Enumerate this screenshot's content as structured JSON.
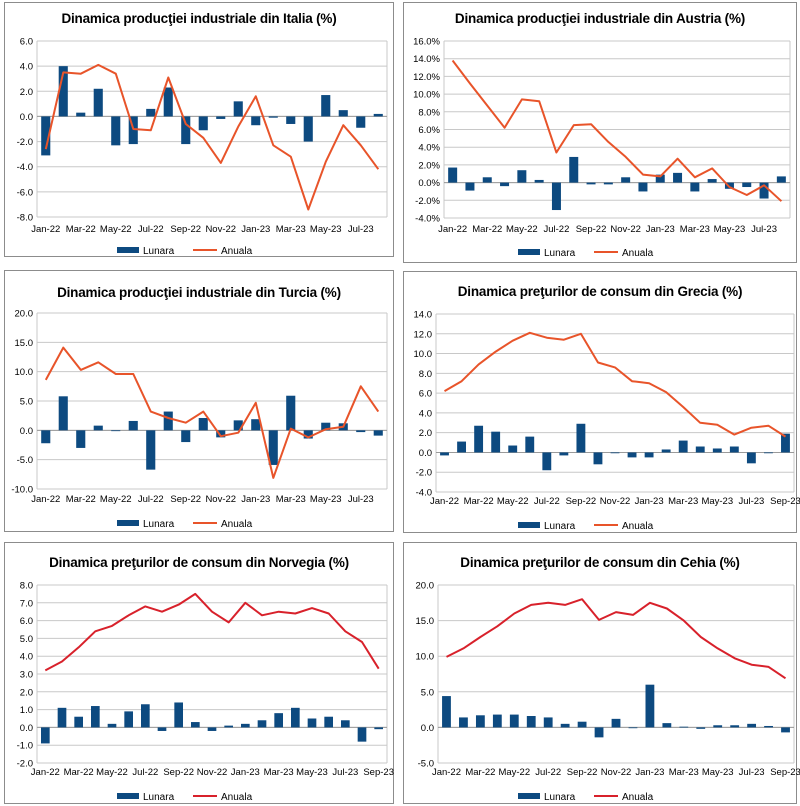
{
  "colors": {
    "bar": "#0d4a80",
    "line_orange": "#e8542a",
    "line_red": "#d8212b",
    "grid": "#c8c8c8"
  },
  "legend": {
    "bar": "Lunara",
    "line": "Anuala"
  },
  "chart_data": [
    {
      "type": "bar+line",
      "title": "Dinamica producţiei industriale din Italia (%)",
      "ylim": [
        -8,
        6
      ],
      "yticks": [
        "6.0",
        "4.0",
        "2.0",
        "0.0",
        "-2.0",
        "-4.0",
        "-6.0",
        "-8.0"
      ],
      "ytick_values": [
        6,
        4,
        2,
        0,
        -2,
        -4,
        -6,
        -8
      ],
      "xtick_labels": [
        "Jan-22",
        "Mar-22",
        "May-22",
        "Jul-22",
        "Sep-22",
        "Nov-22",
        "Jan-23",
        "Mar-23",
        "May-23",
        "Jul-23"
      ],
      "n": 20,
      "line_color": "orange",
      "series": [
        {
          "name": "Lunara",
          "kind": "bar",
          "values": [
            -3.1,
            4.0,
            0.3,
            2.2,
            -2.3,
            -2.2,
            0.6,
            2.3,
            -2.2,
            -1.1,
            -0.2,
            1.2,
            -0.7,
            -0.1,
            -0.6,
            -2.0,
            1.7,
            0.5,
            -0.9,
            0.2
          ]
        },
        {
          "name": "Anuala",
          "kind": "line",
          "values": [
            -2.6,
            3.5,
            3.4,
            4.1,
            3.4,
            -1.0,
            -1.1,
            3.1,
            -0.6,
            -1.7,
            -3.7,
            -0.8,
            1.6,
            -2.3,
            -3.2,
            -7.4,
            -3.6,
            -0.7,
            -2.3,
            -4.2
          ]
        }
      ]
    },
    {
      "type": "bar+line",
      "title": "Dinamica producţiei industriale din Austria (%)",
      "ylim": [
        -4,
        16
      ],
      "yticks": [
        "16.0%",
        "14.0%",
        "12.0%",
        "10.0%",
        "8.0%",
        "6.0%",
        "4.0%",
        "2.0%",
        "0.0%",
        "-2.0%",
        "-4.0%"
      ],
      "ytick_values": [
        16,
        14,
        12,
        10,
        8,
        6,
        4,
        2,
        0,
        -2,
        -4
      ],
      "xtick_labels": [
        "Jan-22",
        "Mar-22",
        "May-22",
        "Jul-22",
        "Sep-22",
        "Nov-22",
        "Jan-23",
        "Mar-23",
        "May-23",
        "Jul-23"
      ],
      "n": 20,
      "line_color": "orange",
      "series": [
        {
          "name": "Lunara",
          "kind": "bar",
          "values": [
            1.7,
            -0.9,
            0.6,
            -0.4,
            1.4,
            0.3,
            -3.1,
            2.9,
            -0.2,
            -0.2,
            0.6,
            -1.0,
            0.9,
            1.1,
            -1.0,
            0.4,
            -0.7,
            -0.5,
            -1.8,
            0.7
          ]
        },
        {
          "name": "Anuala",
          "kind": "line",
          "values": [
            13.8,
            11.2,
            8.7,
            6.2,
            9.4,
            9.2,
            3.4,
            6.5,
            6.6,
            4.6,
            2.9,
            0.9,
            0.7,
            2.7,
            0.6,
            1.6,
            -0.5,
            -1.4,
            -0.3,
            -2.1
          ]
        }
      ]
    },
    {
      "type": "bar+line",
      "title": "Dinamica producţiei industriale din Turcia (%)",
      "ylim": [
        -10,
        20
      ],
      "yticks": [
        "20.0",
        "15.0",
        "10.0",
        "5.0",
        "0.0",
        "-5.0",
        "-10.0"
      ],
      "ytick_values": [
        20,
        15,
        10,
        5,
        0,
        -5,
        -10
      ],
      "xtick_labels": [
        "Jan-22",
        "Mar-22",
        "May-22",
        "Jul-22",
        "Sep-22",
        "Nov-22",
        "Jan-23",
        "Mar-23",
        "May-23",
        "Jul-23"
      ],
      "n": 20,
      "line_color": "orange",
      "series": [
        {
          "name": "Lunara",
          "kind": "bar",
          "values": [
            -2.2,
            5.8,
            -3.0,
            0.8,
            0.0,
            1.6,
            -6.7,
            3.2,
            -2.0,
            2.1,
            -1.2,
            1.7,
            1.9,
            -5.9,
            5.9,
            -1.4,
            1.3,
            1.2,
            -0.3,
            -0.9
          ]
        },
        {
          "name": "Anuala",
          "kind": "line",
          "values": [
            8.6,
            14.1,
            10.3,
            11.6,
            9.6,
            9.6,
            3.2,
            2.1,
            1.3,
            3.2,
            -1.0,
            -0.4,
            4.7,
            -8.1,
            0.3,
            -1.2,
            0.2,
            0.6,
            7.5,
            3.2
          ]
        }
      ]
    },
    {
      "type": "bar+line",
      "title": "Dinamica preţurilor de consum din Grecia (%)",
      "ylim": [
        -4,
        14
      ],
      "yticks": [
        "14.0",
        "12.0",
        "10.0",
        "8.0",
        "6.0",
        "4.0",
        "2.0",
        "0.0",
        "-2.0",
        "-4.0"
      ],
      "ytick_values": [
        14,
        12,
        10,
        8,
        6,
        4,
        2,
        0,
        -2,
        -4
      ],
      "xtick_labels": [
        "Jan-22",
        "Mar-22",
        "May-22",
        "Jul-22",
        "Sep-22",
        "Nov-22",
        "Jan-23",
        "Mar-23",
        "May-23",
        "Jul-23",
        "Sep-23"
      ],
      "n": 21,
      "line_color": "orange",
      "series": [
        {
          "name": "Lunara",
          "kind": "bar",
          "values": [
            -0.3,
            1.1,
            2.7,
            2.1,
            0.7,
            1.6,
            -1.8,
            -0.3,
            2.9,
            -1.2,
            0.0,
            -0.5,
            -0.5,
            0.3,
            1.2,
            0.6,
            0.4,
            0.6,
            -1.1,
            0.0,
            1.9
          ]
        },
        {
          "name": "Anuala",
          "kind": "line",
          "values": [
            6.2,
            7.2,
            8.9,
            10.2,
            11.3,
            12.1,
            11.6,
            11.4,
            12.0,
            9.1,
            8.6,
            7.2,
            7.0,
            6.1,
            4.6,
            3.0,
            2.8,
            1.8,
            2.5,
            2.7,
            1.6
          ]
        }
      ]
    },
    {
      "type": "bar+line",
      "title": "Dinamica preţurilor de consum din Norvegia (%)",
      "ylim": [
        -2,
        8
      ],
      "yticks": [
        "8.0",
        "7.0",
        "6.0",
        "5.0",
        "4.0",
        "3.0",
        "2.0",
        "1.0",
        "0.0",
        "-1.0",
        "-2.0"
      ],
      "ytick_values": [
        8,
        7,
        6,
        5,
        4,
        3,
        2,
        1,
        0,
        -1,
        -2
      ],
      "xtick_labels": [
        "Jan-22",
        "Mar-22",
        "May-22",
        "Jul-22",
        "Sep-22",
        "Nov-22",
        "Jan-23",
        "Mar-23",
        "May-23",
        "Jul-23",
        "Sep-23"
      ],
      "n": 21,
      "line_color": "red",
      "series": [
        {
          "name": "Lunara",
          "kind": "bar",
          "values": [
            -0.9,
            1.1,
            0.6,
            1.2,
            0.2,
            0.9,
            1.3,
            -0.2,
            1.4,
            0.3,
            -0.2,
            0.1,
            0.2,
            0.4,
            0.8,
            1.1,
            0.5,
            0.6,
            0.4,
            -0.8,
            -0.1
          ]
        },
        {
          "name": "Anuala",
          "kind": "line",
          "values": [
            3.2,
            3.7,
            4.5,
            5.4,
            5.7,
            6.3,
            6.8,
            6.5,
            6.9,
            7.5,
            6.5,
            5.9,
            7.0,
            6.3,
            6.5,
            6.4,
            6.7,
            6.4,
            5.4,
            4.8,
            3.3
          ]
        }
      ]
    },
    {
      "type": "bar+line",
      "title": "Dinamica preţurilor de consum din Cehia (%)",
      "ylim": [
        -5,
        20
      ],
      "yticks": [
        "20.0",
        "15.0",
        "10.0",
        "5.0",
        "0.0",
        "-5.0"
      ],
      "ytick_values": [
        20,
        15,
        10,
        5,
        0,
        -5
      ],
      "xtick_labels": [
        "Jan-22",
        "Mar-22",
        "May-22",
        "Jul-22",
        "Sep-22",
        "Nov-22",
        "Jan-23",
        "Mar-23",
        "May-23",
        "Jul-23",
        "Sep-23"
      ],
      "n": 21,
      "line_color": "red",
      "series": [
        {
          "name": "Lunara",
          "kind": "bar",
          "values": [
            4.4,
            1.4,
            1.7,
            1.8,
            1.8,
            1.6,
            1.4,
            0.5,
            0.8,
            -1.4,
            1.2,
            0.0,
            6.0,
            0.6,
            0.1,
            -0.2,
            0.3,
            0.3,
            0.5,
            0.2,
            -0.7
          ]
        },
        {
          "name": "Anuala",
          "kind": "line",
          "values": [
            9.9,
            11.1,
            12.7,
            14.2,
            16.0,
            17.2,
            17.5,
            17.2,
            18.0,
            15.1,
            16.2,
            15.8,
            17.5,
            16.7,
            15.0,
            12.7,
            11.1,
            9.7,
            8.8,
            8.5,
            6.9
          ]
        }
      ]
    }
  ]
}
